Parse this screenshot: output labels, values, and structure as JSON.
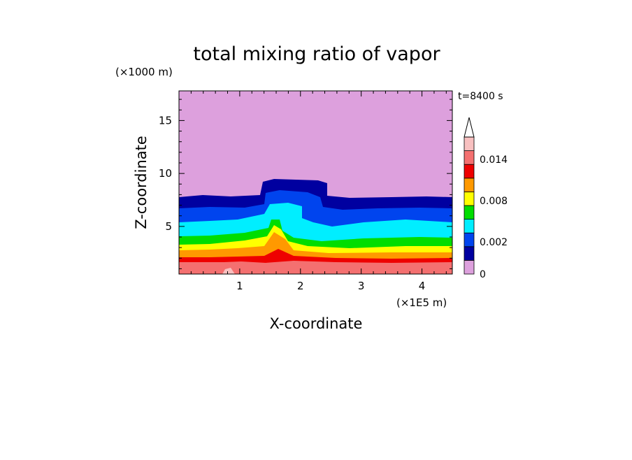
{
  "chart_data": {
    "type": "heatmap",
    "title": "total mixing ratio of vapor",
    "xlabel": "X-coordinate",
    "ylabel": "Z-coordinate",
    "x_unit": "(×1E5 m)",
    "y_unit": "(×1000 m)",
    "time_label": "t=8400 s",
    "xlim": [
      0,
      4.5
    ],
    "ylim": [
      0.5,
      17.8
    ],
    "x_ticks": [
      1,
      2,
      3,
      4
    ],
    "x_tick_labels": [
      "1",
      "2",
      "3",
      "4"
    ],
    "y_ticks": [
      5,
      10,
      15
    ],
    "y_tick_labels": [
      "5",
      "10",
      "15"
    ],
    "colorbar": {
      "levels": [
        0,
        0.001,
        0.002,
        0.004,
        0.006,
        0.008,
        0.01,
        0.012,
        0.014,
        0.016
      ],
      "colors": [
        "#dda0dd",
        "#0000a0",
        "#0044ee",
        "#00eeff",
        "#00dd00",
        "#ffff00",
        "#ff9900",
        "#ee0000",
        "#f47070",
        "#f8c0c0"
      ],
      "extend": "max",
      "tick_values": [
        0,
        0.002,
        0.008,
        0.014
      ],
      "tick_labels": [
        "0",
        "0.002",
        "0.008",
        "0.014"
      ]
    }
  }
}
